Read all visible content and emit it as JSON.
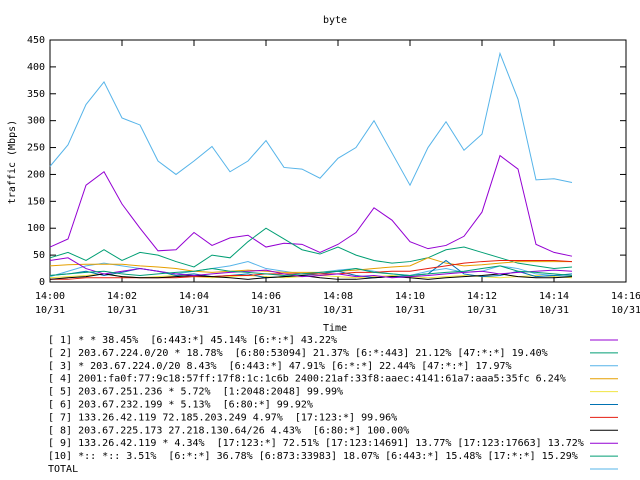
{
  "chart_data": {
    "type": "line",
    "title": "byte",
    "xlabel": "Time",
    "ylabel": "traffic (Mbps)",
    "x": [
      0,
      0.5,
      1,
      1.5,
      2,
      2.5,
      3,
      3.5,
      4,
      4.5,
      5,
      5.5,
      6,
      6.5,
      7,
      7.5,
      8,
      8.5,
      9,
      9.5,
      10,
      10.5,
      11,
      11.5,
      12,
      12.5,
      13,
      13.5,
      14,
      14.5
    ],
    "xlim": [
      0,
      16
    ],
    "xticks": [
      {
        "value": 0,
        "label": [
          "14:00",
          "10/31"
        ]
      },
      {
        "value": 2,
        "label": [
          "14:02",
          "10/31"
        ]
      },
      {
        "value": 4,
        "label": [
          "14:04",
          "10/31"
        ]
      },
      {
        "value": 6,
        "label": [
          "14:06",
          "10/31"
        ]
      },
      {
        "value": 8,
        "label": [
          "14:08",
          "10/31"
        ]
      },
      {
        "value": 10,
        "label": [
          "14:10",
          "10/31"
        ]
      },
      {
        "value": 12,
        "label": [
          "14:12",
          "10/31"
        ]
      },
      {
        "value": 14,
        "label": [
          "14:14",
          "10/31"
        ]
      },
      {
        "value": 16,
        "label": [
          "14:16",
          "10/31"
        ]
      }
    ],
    "ylim": [
      0,
      450
    ],
    "yticks": [
      0,
      50,
      100,
      150,
      200,
      250,
      300,
      350,
      400,
      450
    ],
    "series": [
      {
        "name": "[ 1] * * 38.45%  [6:443:*] 45.14% [6:*:*] 43.22%",
        "color": "#9400d3",
        "values": [
          65,
          80,
          180,
          205,
          145,
          100,
          58,
          60,
          92,
          68,
          82,
          87,
          65,
          72,
          70,
          55,
          70,
          92,
          138,
          115,
          75,
          62,
          68,
          85,
          130,
          235,
          210,
          70,
          55,
          48
        ]
      },
      {
        "name": "[ 2] 203.67.224.0/20 * 18.78%  [6:80:53094] 21.37% [6:*:443] 21.12% [47:*:*] 19.40%",
        "color": "#009e73",
        "values": [
          45,
          55,
          40,
          60,
          40,
          55,
          50,
          38,
          28,
          50,
          45,
          75,
          100,
          80,
          60,
          52,
          65,
          50,
          40,
          35,
          38,
          45,
          60,
          65,
          55,
          45,
          35,
          30,
          25,
          28
        ]
      },
      {
        "name": "[ 3] * 203.67.224.0/20 8.43%  [6:443:*] 47.91% [6:*:*] 22.44% [47:*:*] 17.97%",
        "color": "#56b4e9",
        "values": [
          10,
          20,
          30,
          35,
          30,
          25,
          20,
          15,
          20,
          25,
          30,
          38,
          25,
          20,
          15,
          18,
          22,
          25,
          20,
          15,
          12,
          20,
          25,
          18,
          20,
          30,
          25,
          15,
          12,
          10
        ]
      },
      {
        "name": "[ 4] 2001:fa0f:77:9c18:57ff:17f8:1c:1c6b 2400:21af:33f8:aaec:4141:61a7:aaa5:35fc 6.24%",
        "color": "#e69f00",
        "values": [
          30,
          32,
          33,
          33,
          33,
          30,
          28,
          25,
          20,
          18,
          20,
          22,
          20,
          18,
          18,
          18,
          20,
          22,
          25,
          28,
          30,
          45,
          35,
          30,
          32,
          35,
          38,
          38,
          38,
          38
        ]
      },
      {
        "name": "[ 5] 203.67.251.236 * 5.72%  [1:2048:2048] 99.99%",
        "color": "#f0e442",
        "values": [
          8,
          10,
          12,
          15,
          10,
          8,
          10,
          12,
          10,
          8,
          10,
          12,
          10,
          8,
          10,
          12,
          10,
          8,
          10,
          12,
          10,
          8,
          10,
          12,
          10,
          8,
          10,
          12,
          10,
          8
        ]
      },
      {
        "name": "[ 6] 203.67.232.199 * 5.13%  [6:80:*] 99.92%",
        "color": "#0072b2",
        "values": [
          12,
          15,
          20,
          12,
          18,
          25,
          20,
          12,
          15,
          10,
          12,
          15,
          8,
          10,
          12,
          15,
          20,
          12,
          8,
          10,
          12,
          15,
          40,
          15,
          10,
          12,
          20,
          10,
          12,
          15
        ]
      },
      {
        "name": "[ 7] 133.26.42.119 72.185.203.249 4.97%  [17:123:*] 99.96%",
        "color": "#e51e10",
        "values": [
          5,
          5,
          8,
          8,
          8,
          8,
          8,
          8,
          10,
          10,
          12,
          12,
          15,
          15,
          15,
          15,
          15,
          18,
          18,
          20,
          20,
          25,
          30,
          35,
          38,
          40,
          40,
          40,
          40,
          38
        ]
      },
      {
        "name": "[ 8] 203.67.225.173 27.218.130.64/26 4.43%  [6:80:*] 100.00%",
        "color": "#000000",
        "values": [
          5,
          8,
          10,
          15,
          10,
          8,
          8,
          10,
          12,
          10,
          8,
          5,
          8,
          10,
          12,
          8,
          5,
          5,
          8,
          10,
          8,
          5,
          8,
          10,
          12,
          15,
          10,
          8,
          8,
          10
        ]
      },
      {
        "name": "[ 9] 133.26.42.119 * 4.34%  [17:123:*] 72.51% [17:123:14691] 13.77% [17:123:17663] 13.72%",
        "color": "#9400d3",
        "values": [
          40,
          45,
          25,
          15,
          20,
          25,
          20,
          15,
          12,
          15,
          18,
          20,
          22,
          15,
          10,
          12,
          15,
          10,
          12,
          8,
          10,
          12,
          15,
          18,
          20,
          15,
          18,
          20,
          22,
          20
        ]
      },
      {
        "name": "[10] *:: *:: 3.51%  [6:*:*] 36.78% [6:873:33983] 18.07% [6:443:*] 15.48% [17:*:*] 15.29%",
        "color": "#009e73",
        "values": [
          12,
          15,
          18,
          20,
          15,
          12,
          15,
          18,
          20,
          25,
          20,
          18,
          15,
          12,
          15,
          18,
          20,
          25,
          18,
          15,
          12,
          15,
          18,
          20,
          25,
          30,
          20,
          18,
          15,
          12
        ]
      },
      {
        "name": "TOTAL",
        "color": "#56b4e9",
        "values": [
          215,
          255,
          330,
          372,
          305,
          292,
          225,
          200,
          225,
          252,
          205,
          225,
          263,
          213,
          210,
          193,
          230,
          250,
          300,
          240,
          180,
          250,
          298,
          245,
          275,
          425,
          340,
          190,
          192,
          185
        ]
      }
    ]
  }
}
